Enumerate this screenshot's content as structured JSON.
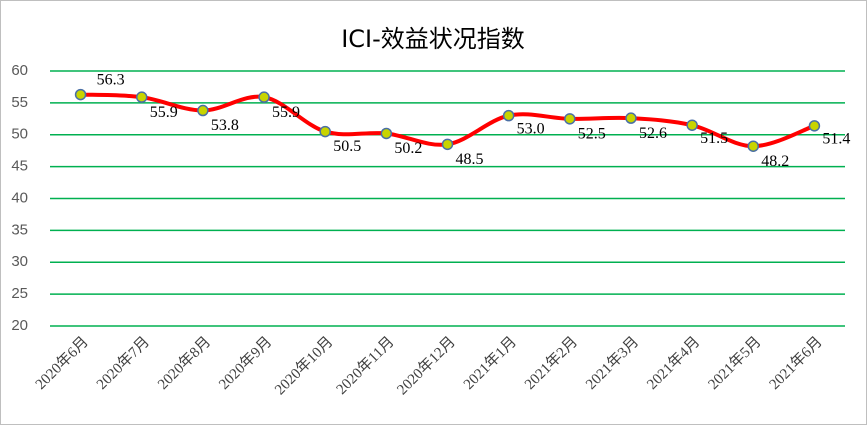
{
  "chart_data": {
    "type": "line",
    "title": "ICI-效益状况指数",
    "categories": [
      "2020年6月",
      "2020年7月",
      "2020年8月",
      "2020年9月",
      "2020年10月",
      "2020年11月",
      "2020年12月",
      "2021年1月",
      "2021年2月",
      "2021年3月",
      "2021年4月",
      "2021年5月",
      "2021年6月"
    ],
    "series": [
      {
        "color": "#ff0000",
        "values": [
          56.3,
          55.9,
          53.8,
          55.9,
          50.5,
          50.2,
          48.5,
          53.0,
          52.5,
          52.6,
          51.5,
          48.2,
          51.4
        ],
        "value_labels": [
          "56.3",
          "55.9",
          "53.8",
          "55.9",
          "50.5",
          "50.2",
          "48.5",
          "53.0",
          "52.5",
          "52.6",
          "51.5",
          "48.2",
          "51.4"
        ]
      }
    ],
    "ylim": [
      20,
      60
    ],
    "yticks": [
      20,
      25,
      30,
      35,
      40,
      45,
      50,
      55,
      60
    ],
    "grid": true,
    "grid_color": "#00b050"
  }
}
